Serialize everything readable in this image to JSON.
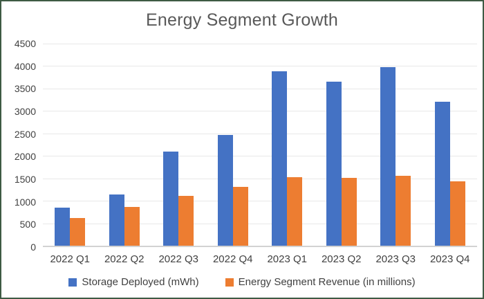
{
  "chart_data": {
    "type": "bar",
    "title": "Energy Segment Growth",
    "categories": [
      "2022 Q1",
      "2022 Q2",
      "2022 Q3",
      "2022 Q4",
      "2023 Q1",
      "2023 Q2",
      "2023 Q3",
      "2023 Q4"
    ],
    "series": [
      {
        "name": "Storage Deployed (mWh)",
        "color": "#4472C4",
        "values": [
          846,
          1133,
          2100,
          2462,
          3889,
          3653,
          3980,
          3202
        ]
      },
      {
        "name": "Energy Segment Revenue (in millions)",
        "color": "#ED7D31",
        "values": [
          616,
          866,
          1117,
          1310,
          1529,
          1509,
          1559,
          1438
        ]
      }
    ],
    "xlabel": "",
    "ylabel": "",
    "ylim": [
      0,
      4500
    ],
    "ytick_step": 500,
    "grid": true,
    "legend_position": "bottom"
  },
  "colors": {
    "frame_border": "#3e5a44",
    "title_text": "#595959",
    "axis_text": "#404040",
    "gridline": "#e8e8e8",
    "axis_line": "#d2d2d2",
    "background": "#ffffff"
  }
}
